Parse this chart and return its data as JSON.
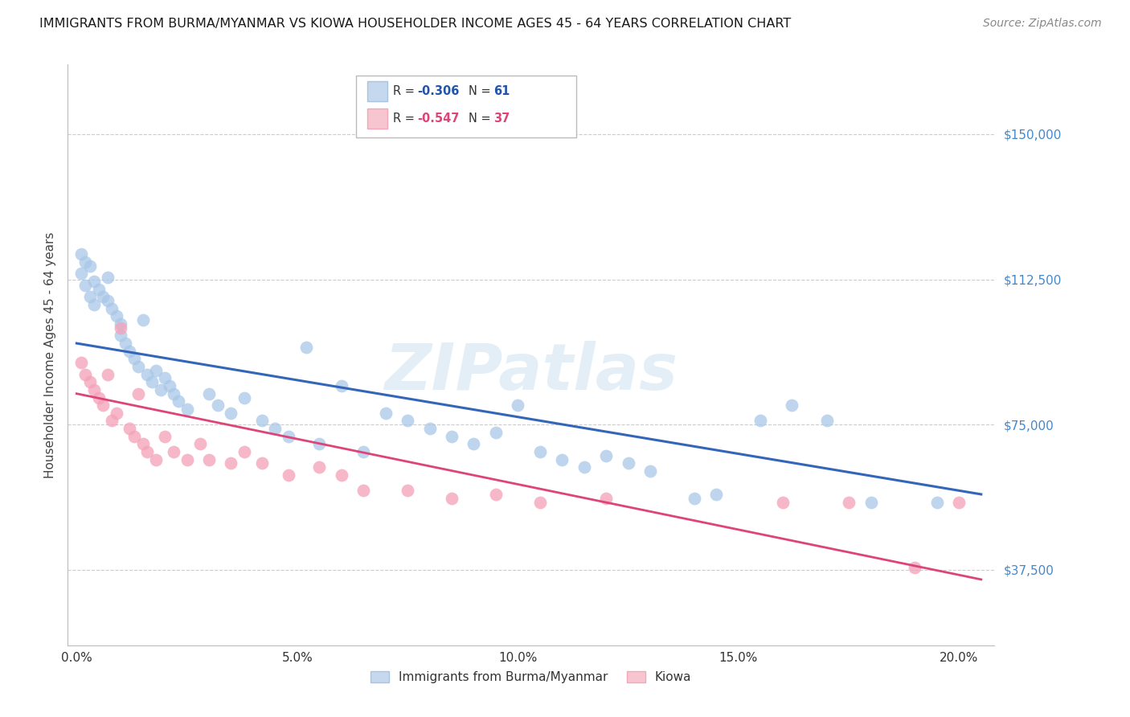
{
  "title": "IMMIGRANTS FROM BURMA/MYANMAR VS KIOWA HOUSEHOLDER INCOME AGES 45 - 64 YEARS CORRELATION CHART",
  "source": "Source: ZipAtlas.com",
  "ylabel": "Householder Income Ages 45 - 64 years",
  "xlabel_ticks": [
    "0.0%",
    "5.0%",
    "10.0%",
    "15.0%",
    "20.0%"
  ],
  "xlabel_vals": [
    0.0,
    0.05,
    0.1,
    0.15,
    0.2
  ],
  "ytick_labels": [
    "$37,500",
    "$75,000",
    "$112,500",
    "$150,000"
  ],
  "ytick_vals": [
    37500,
    75000,
    112500,
    150000
  ],
  "ymin": 18000,
  "ymax": 168000,
  "xmin": -0.002,
  "xmax": 0.208,
  "watermark": "ZIPatlas",
  "legend_blue_R": "-0.306",
  "legend_blue_N": "61",
  "legend_pink_R": "-0.547",
  "legend_pink_N": "37",
  "blue_color": "#a8c8e8",
  "pink_color": "#f4a0b8",
  "blue_line_color": "#3366bb",
  "pink_line_color": "#dd4477",
  "blue_scatter": [
    [
      0.001,
      119000
    ],
    [
      0.001,
      114000
    ],
    [
      0.002,
      117000
    ],
    [
      0.002,
      111000
    ],
    [
      0.003,
      116000
    ],
    [
      0.003,
      108000
    ],
    [
      0.004,
      112000
    ],
    [
      0.004,
      106000
    ],
    [
      0.005,
      110000
    ],
    [
      0.006,
      108000
    ],
    [
      0.007,
      113000
    ],
    [
      0.007,
      107000
    ],
    [
      0.008,
      105000
    ],
    [
      0.009,
      103000
    ],
    [
      0.01,
      101000
    ],
    [
      0.01,
      98000
    ],
    [
      0.011,
      96000
    ],
    [
      0.012,
      94000
    ],
    [
      0.013,
      92000
    ],
    [
      0.014,
      90000
    ],
    [
      0.015,
      102000
    ],
    [
      0.016,
      88000
    ],
    [
      0.017,
      86000
    ],
    [
      0.018,
      89000
    ],
    [
      0.019,
      84000
    ],
    [
      0.02,
      87000
    ],
    [
      0.021,
      85000
    ],
    [
      0.022,
      83000
    ],
    [
      0.023,
      81000
    ],
    [
      0.025,
      79000
    ],
    [
      0.03,
      83000
    ],
    [
      0.032,
      80000
    ],
    [
      0.035,
      78000
    ],
    [
      0.038,
      82000
    ],
    [
      0.042,
      76000
    ],
    [
      0.045,
      74000
    ],
    [
      0.048,
      72000
    ],
    [
      0.052,
      95000
    ],
    [
      0.055,
      70000
    ],
    [
      0.06,
      85000
    ],
    [
      0.065,
      68000
    ],
    [
      0.07,
      78000
    ],
    [
      0.075,
      76000
    ],
    [
      0.08,
      74000
    ],
    [
      0.085,
      72000
    ],
    [
      0.09,
      70000
    ],
    [
      0.095,
      73000
    ],
    [
      0.1,
      80000
    ],
    [
      0.105,
      68000
    ],
    [
      0.11,
      66000
    ],
    [
      0.115,
      64000
    ],
    [
      0.12,
      67000
    ],
    [
      0.125,
      65000
    ],
    [
      0.13,
      63000
    ],
    [
      0.14,
      56000
    ],
    [
      0.145,
      57000
    ],
    [
      0.155,
      76000
    ],
    [
      0.162,
      80000
    ],
    [
      0.17,
      76000
    ],
    [
      0.18,
      55000
    ],
    [
      0.195,
      55000
    ]
  ],
  "pink_scatter": [
    [
      0.001,
      91000
    ],
    [
      0.002,
      88000
    ],
    [
      0.003,
      86000
    ],
    [
      0.004,
      84000
    ],
    [
      0.005,
      82000
    ],
    [
      0.006,
      80000
    ],
    [
      0.007,
      88000
    ],
    [
      0.008,
      76000
    ],
    [
      0.009,
      78000
    ],
    [
      0.01,
      100000
    ],
    [
      0.012,
      74000
    ],
    [
      0.013,
      72000
    ],
    [
      0.014,
      83000
    ],
    [
      0.015,
      70000
    ],
    [
      0.016,
      68000
    ],
    [
      0.018,
      66000
    ],
    [
      0.02,
      72000
    ],
    [
      0.022,
      68000
    ],
    [
      0.025,
      66000
    ],
    [
      0.028,
      70000
    ],
    [
      0.03,
      66000
    ],
    [
      0.035,
      65000
    ],
    [
      0.038,
      68000
    ],
    [
      0.042,
      65000
    ],
    [
      0.048,
      62000
    ],
    [
      0.055,
      64000
    ],
    [
      0.06,
      62000
    ],
    [
      0.065,
      58000
    ],
    [
      0.075,
      58000
    ],
    [
      0.085,
      56000
    ],
    [
      0.095,
      57000
    ],
    [
      0.105,
      55000
    ],
    [
      0.12,
      56000
    ],
    [
      0.16,
      55000
    ],
    [
      0.175,
      55000
    ],
    [
      0.19,
      38000
    ],
    [
      0.2,
      55000
    ]
  ],
  "blue_trendline_x": [
    0.0,
    0.205
  ],
  "blue_trendline_y": [
    96000,
    57000
  ],
  "pink_trendline_x": [
    0.0,
    0.205
  ],
  "pink_trendline_y": [
    83000,
    35000
  ],
  "background_color": "#ffffff",
  "grid_color": "#cccccc",
  "title_fontsize": 11.5,
  "source_fontsize": 10,
  "ylabel_fontsize": 11,
  "tick_fontsize": 11,
  "ytick_color": "#4488cc",
  "scatter_size": 130,
  "scatter_alpha": 0.75
}
